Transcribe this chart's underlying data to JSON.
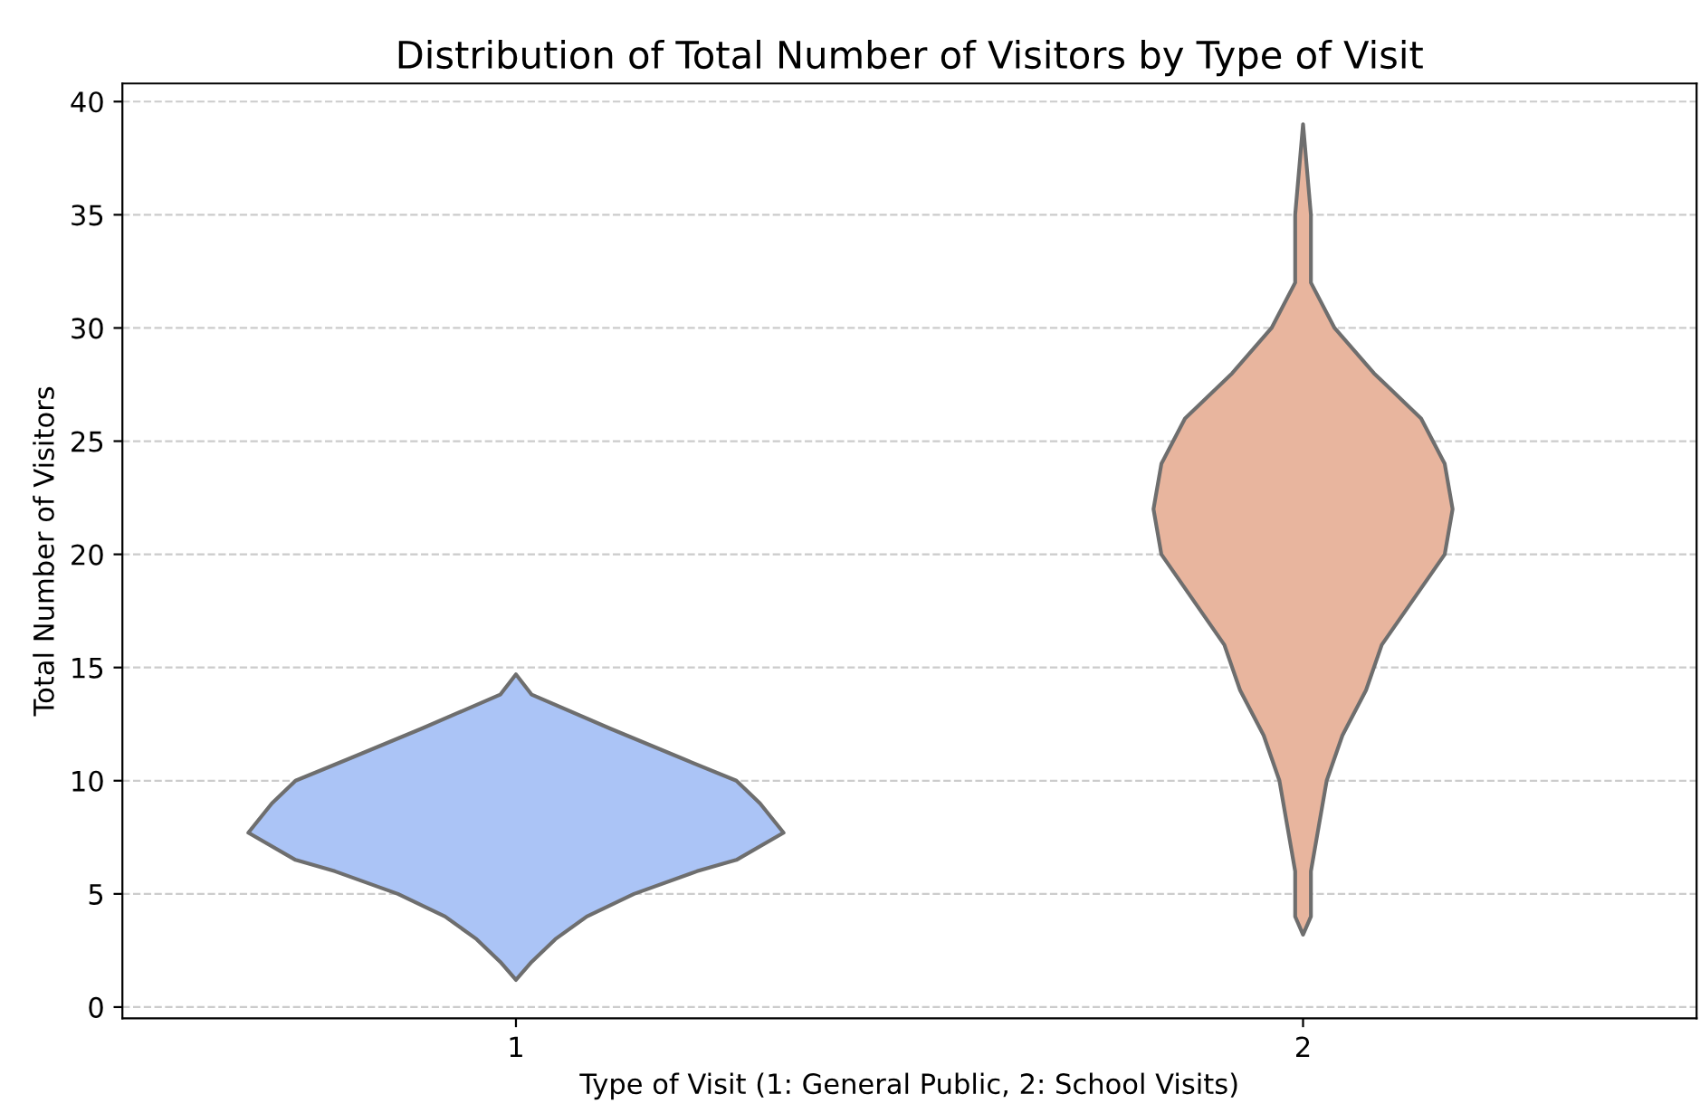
{
  "chart_data": {
    "type": "area",
    "title": "Distribution of Total Number of Visitors by Type of Visit",
    "xlabel": "Type of Visit (1: General Public, 2: School Visits)",
    "ylabel": "Total Number of Visitors",
    "series": [
      {
        "color": "#abc4f6",
        "x": [
          1,
          0.98,
          0.95,
          0.91,
          0.85,
          0.77,
          0.72,
          0.66,
          0.69,
          0.72,
          0.79,
          0.88,
          0.98,
          1,
          1.02,
          1.12,
          1.21,
          1.28,
          1.31,
          1.34,
          1.28,
          1.23,
          1.15,
          1.09,
          1.05,
          1.02
        ],
        "values": [
          1.2,
          2,
          3,
          4,
          5,
          6,
          6.5,
          7.7,
          9,
          10,
          11,
          12.3,
          13.8,
          14.7,
          13.8,
          12.3,
          11,
          10,
          9,
          7.7,
          6.5,
          6,
          5,
          4,
          3,
          2
        ]
      },
      {
        "color": "#e8b59e",
        "x": [
          2,
          1.99,
          1.99,
          1.98,
          1.97,
          1.95,
          1.92,
          1.9,
          1.86,
          1.82,
          1.81,
          1.82,
          1.85,
          1.91,
          1.96,
          1.99,
          1.99,
          2,
          2.01,
          2.01,
          2.04,
          2.09,
          2.15,
          2.18,
          2.19,
          2.18,
          2.14,
          2.1,
          2.08,
          2.05,
          2.03,
          2.02,
          2.01,
          2.01
        ],
        "values": [
          3.2,
          4,
          6,
          8,
          10,
          12,
          14,
          16,
          18,
          20,
          22,
          24,
          26,
          28,
          30,
          32,
          35,
          39,
          35,
          32,
          30,
          28,
          26,
          24,
          22,
          20,
          18,
          16,
          14,
          12,
          10,
          8,
          6,
          4
        ]
      }
    ],
    "xlim": [
      0.5,
      2.5
    ],
    "xticks": [
      1,
      2
    ],
    "ylim": [
      -0.5,
      40.8
    ],
    "yticks": [
      0,
      5,
      10,
      15,
      20,
      25,
      30,
      35,
      40
    ],
    "grid": "y"
  }
}
